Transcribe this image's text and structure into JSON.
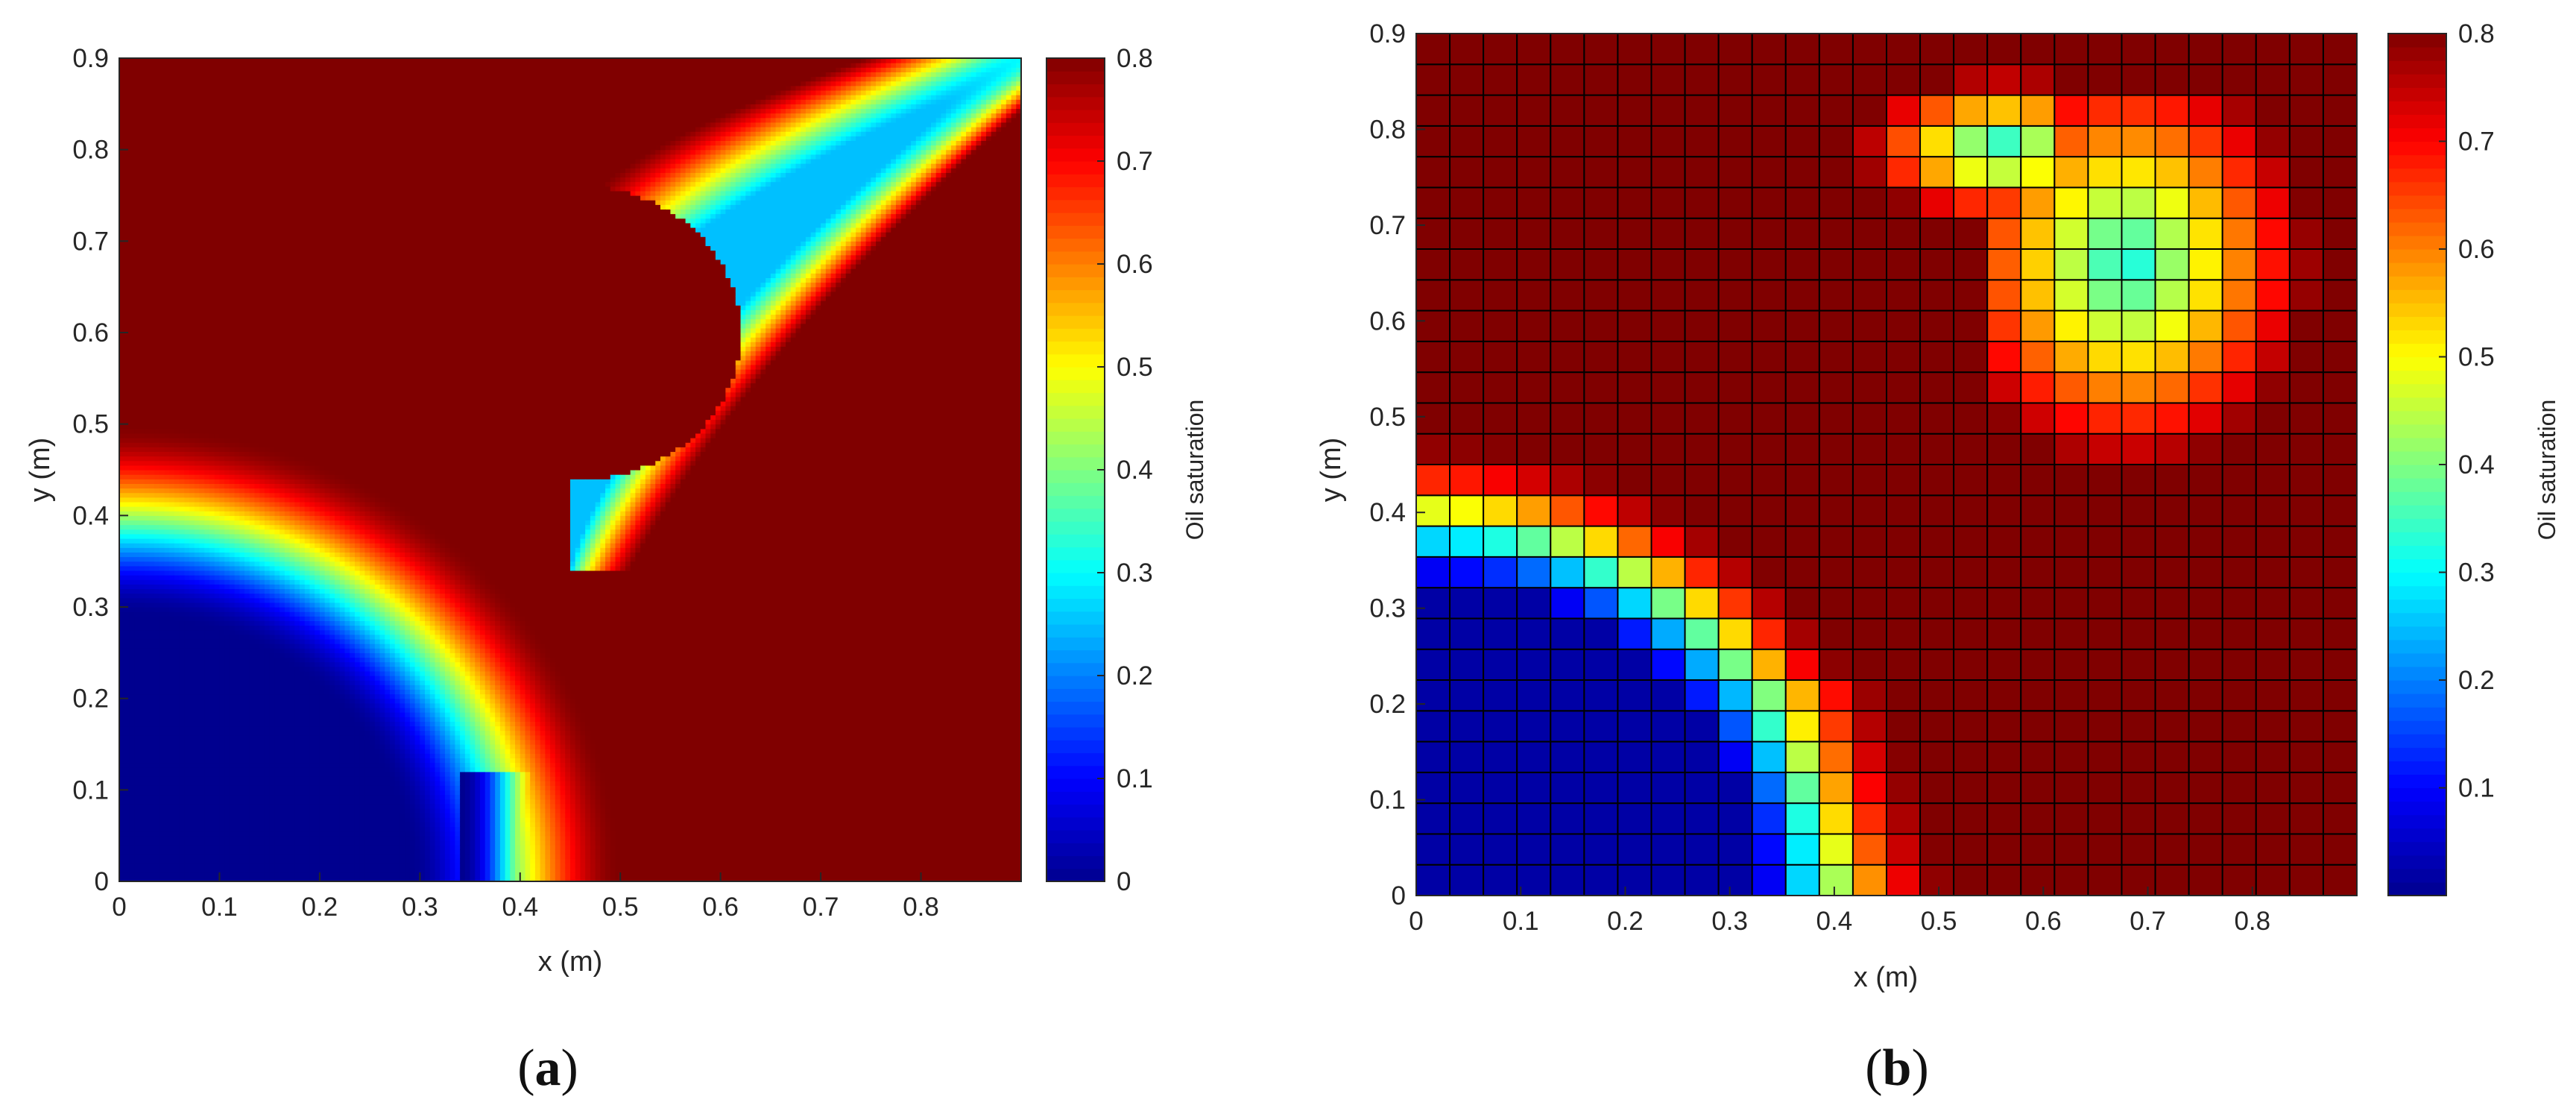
{
  "colormap": [
    "#00008f",
    "#0000ff",
    "#0080ff",
    "#00ffff",
    "#80ff80",
    "#ffff00",
    "#ff8000",
    "#ff0000",
    "#800000"
  ],
  "chart_data": [
    {
      "type": "heatmap",
      "panel_label": "a",
      "xlabel": "x (m)",
      "ylabel": "y (m)",
      "colorbar_label": "Oil saturation",
      "xlim": [
        0,
        0.9
      ],
      "ylim": [
        0,
        0.9
      ],
      "clim": [
        0,
        0.8
      ],
      "xticks": [
        "0",
        "0.1",
        "0.2",
        "0.3",
        "0.4",
        "0.5",
        "0.6",
        "0.7",
        "0.8"
      ],
      "yticks": [
        "0",
        "0.1",
        "0.2",
        "0.3",
        "0.4",
        "0.5",
        "0.6",
        "0.7",
        "0.8",
        "0.9"
      ],
      "colorbar_ticks": [
        "0",
        "0.1",
        "0.2",
        "0.3",
        "0.4",
        "0.5",
        "0.6",
        "0.7",
        "0.8"
      ],
      "grid": false,
      "resolution": 180
    },
    {
      "type": "heatmap",
      "panel_label": "b",
      "xlabel": "x (m)",
      "ylabel": "y (m)",
      "colorbar_label": "Oil saturation",
      "xlim": [
        0,
        0.9
      ],
      "ylim": [
        0,
        0.9
      ],
      "clim": [
        0,
        0.8
      ],
      "xticks": [
        "0",
        "0.1",
        "0.2",
        "0.3",
        "0.4",
        "0.5",
        "0.6",
        "0.7",
        "0.8"
      ],
      "yticks": [
        "0",
        "0.1",
        "0.2",
        "0.3",
        "0.4",
        "0.5",
        "0.6",
        "0.7",
        "0.8",
        "0.9"
      ],
      "colorbar_ticks": [
        "0.1",
        "0.2",
        "0.3",
        "0.4",
        "0.5",
        "0.6",
        "0.7",
        "0.8"
      ],
      "grid": true,
      "resolution": 28
    }
  ]
}
